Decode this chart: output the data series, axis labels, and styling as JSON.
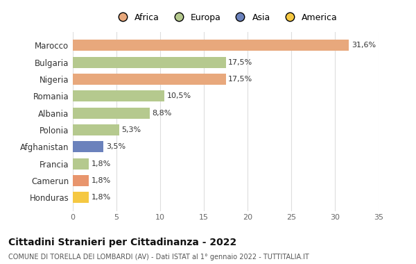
{
  "categories": [
    "Honduras",
    "Camerun",
    "Francia",
    "Afghanistan",
    "Polonia",
    "Albania",
    "Romania",
    "Nigeria",
    "Bulgaria",
    "Marocco"
  ],
  "values": [
    1.8,
    1.8,
    1.8,
    3.5,
    5.3,
    8.8,
    10.5,
    17.5,
    17.5,
    31.6
  ],
  "labels": [
    "1,8%",
    "1,8%",
    "1,8%",
    "3,5%",
    "5,3%",
    "8,8%",
    "10,5%",
    "17,5%",
    "17,5%",
    "31,6%"
  ],
  "colors": [
    "#F5C842",
    "#E8956D",
    "#B5C98E",
    "#6B82BC",
    "#B5C98E",
    "#B5C98E",
    "#B5C98E",
    "#E8A87C",
    "#B5C98E",
    "#E8A87C"
  ],
  "legend_labels": [
    "Africa",
    "Europa",
    "Asia",
    "America"
  ],
  "legend_colors": [
    "#E8A87C",
    "#B5C98E",
    "#6B82BC",
    "#F5C842"
  ],
  "xlim": [
    0,
    35
  ],
  "xticks": [
    0,
    5,
    10,
    15,
    20,
    25,
    30,
    35
  ],
  "title": "Cittadini Stranieri per Cittadinanza - 2022",
  "subtitle": "COMUNE DI TORELLA DEI LOMBARDI (AV) - Dati ISTAT al 1° gennaio 2022 - TUTTITALIA.IT",
  "bg_color": "#ffffff",
  "bar_height": 0.65
}
